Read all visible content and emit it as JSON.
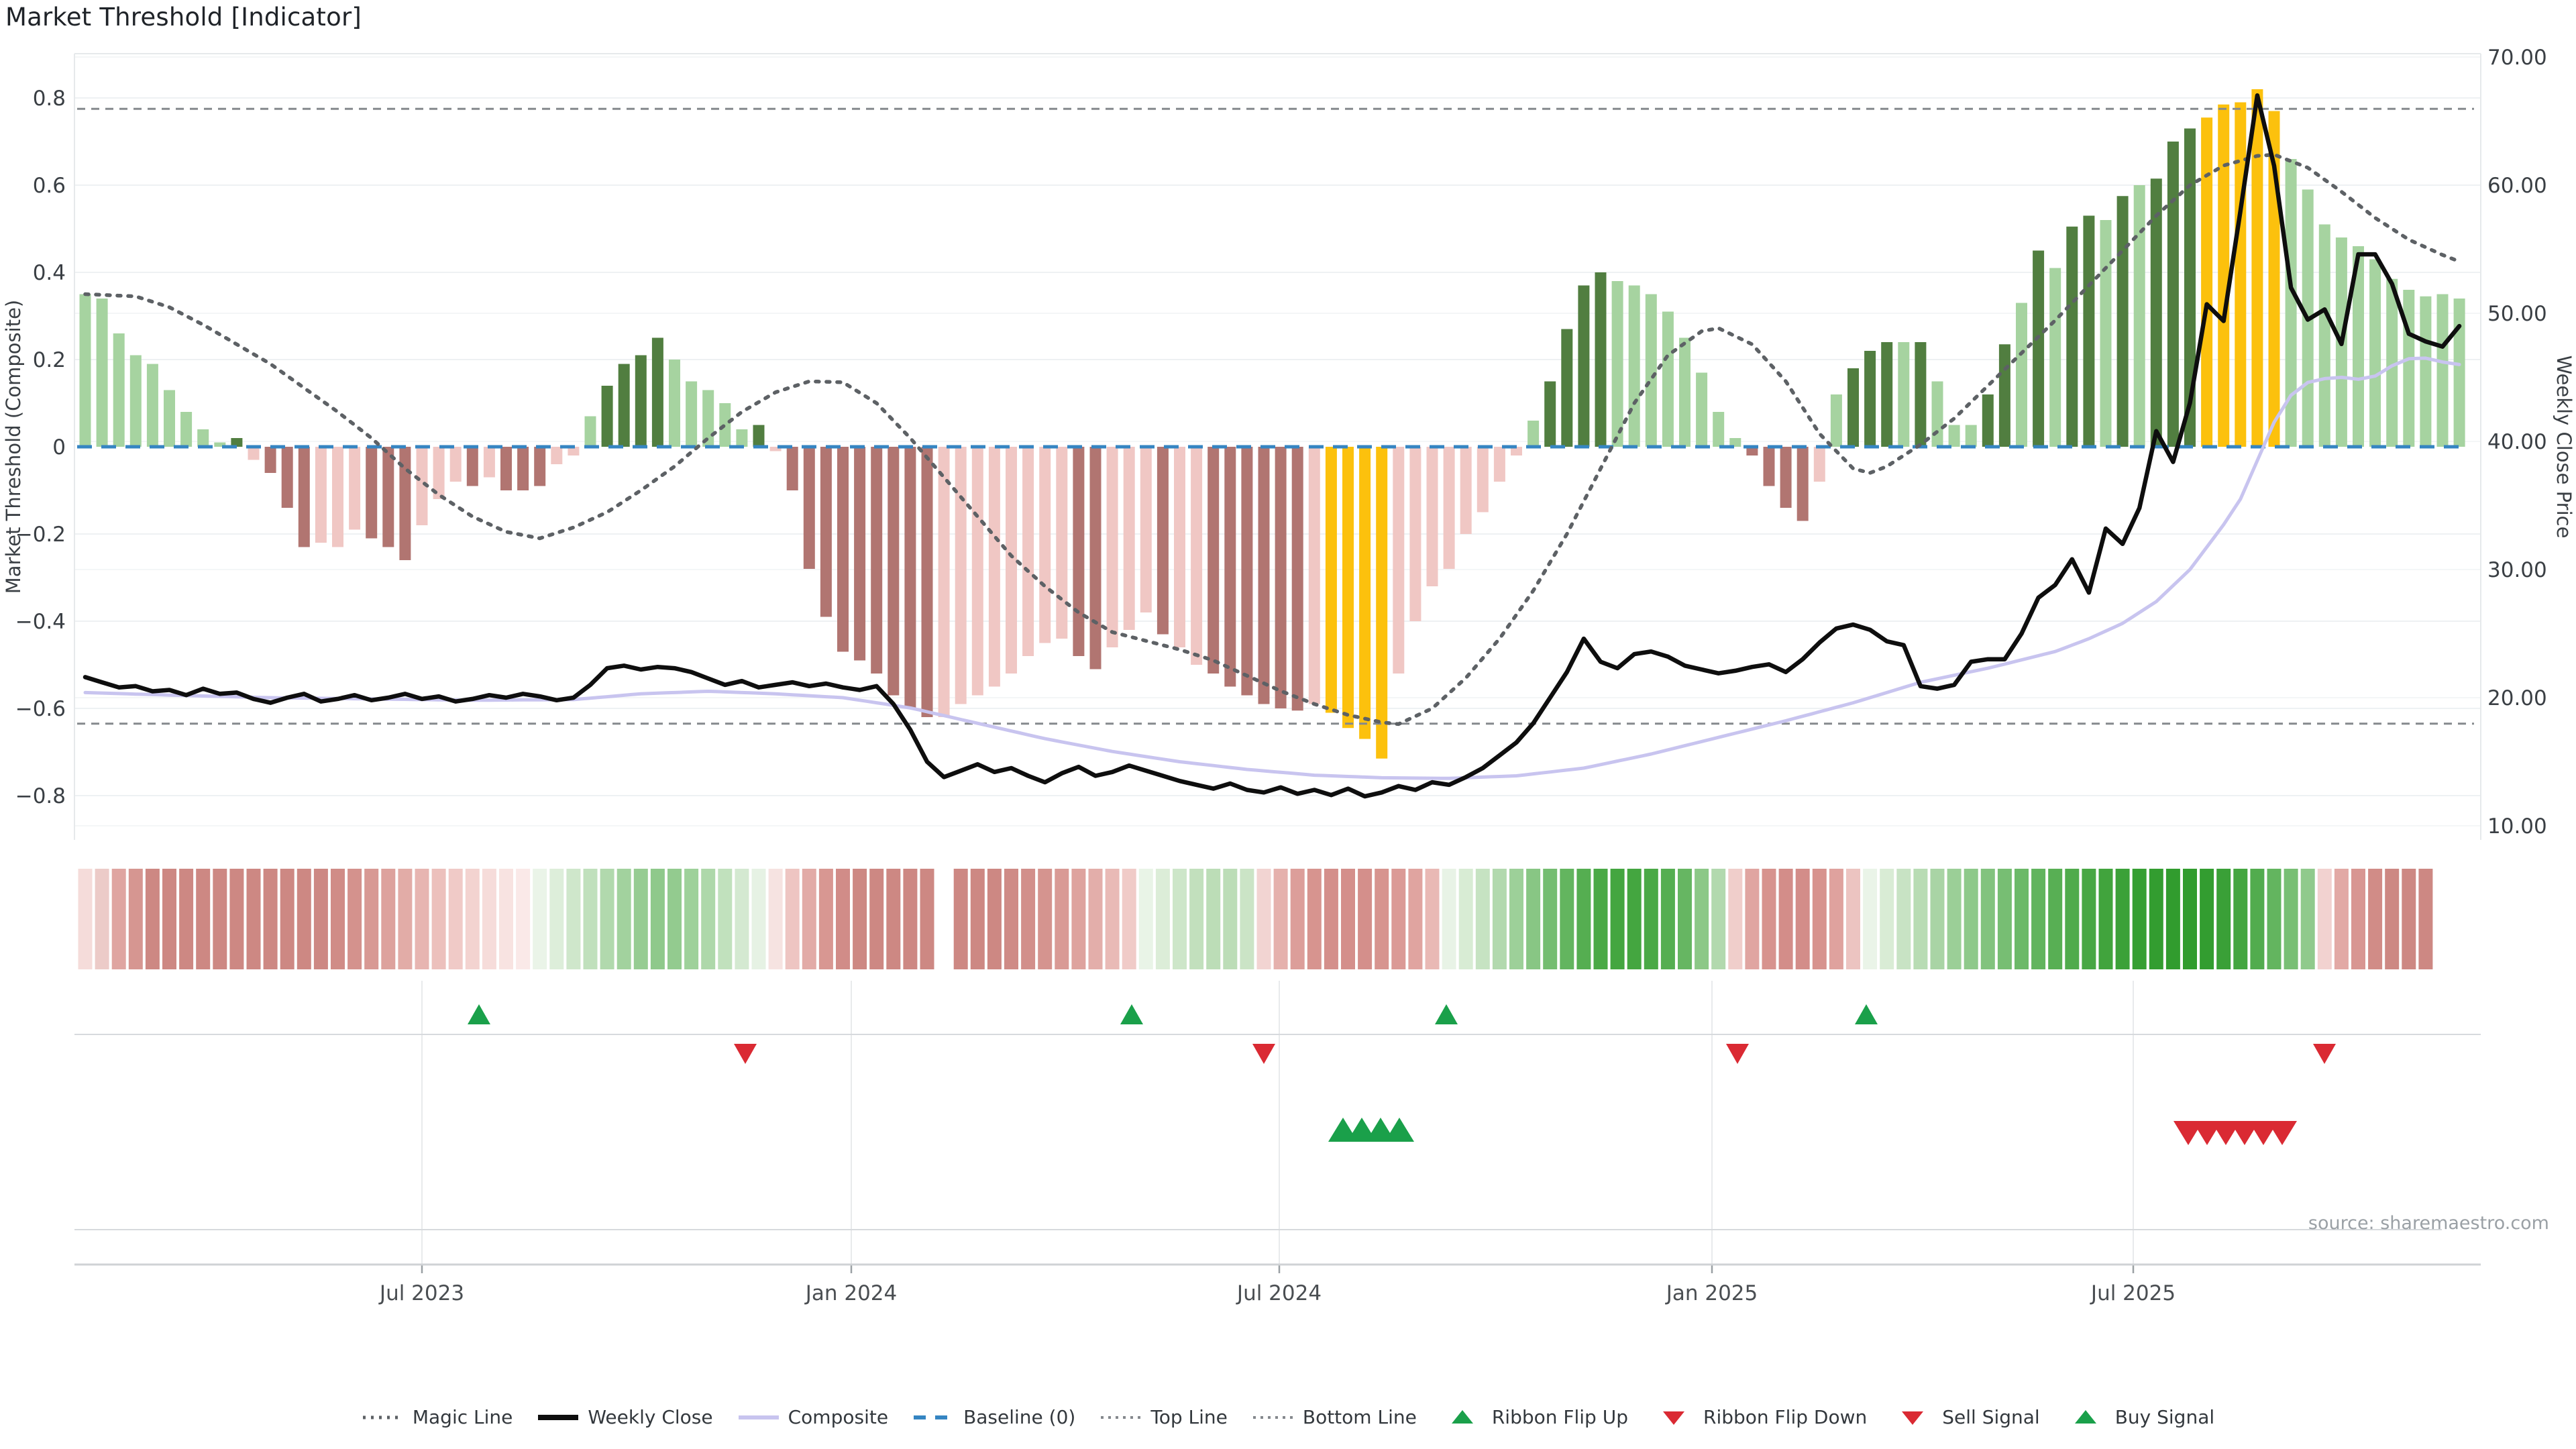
{
  "title": "Market Threshold [Indicator]",
  "source_note": "source: sharemaestro.com",
  "axes": {
    "left_label": "Market Threshold (Composite)",
    "right_label": "Weekly Close Price",
    "left_ticks": [
      {
        "v": 0.8,
        "label": "0.8"
      },
      {
        "v": 0.6,
        "label": "0.6"
      },
      {
        "v": 0.4,
        "label": "0.4"
      },
      {
        "v": 0.2,
        "label": "0.2"
      },
      {
        "v": 0.0,
        "label": "0"
      },
      {
        "v": -0.2,
        "label": "−0.2"
      },
      {
        "v": -0.4,
        "label": "−0.4"
      },
      {
        "v": -0.6,
        "label": "−0.6"
      },
      {
        "v": -0.8,
        "label": "−0.8"
      }
    ],
    "right_ticks": [
      {
        "p": 70,
        "label": "70.00"
      },
      {
        "p": 60,
        "label": "60.00"
      },
      {
        "p": 50,
        "label": "50.00"
      },
      {
        "p": 40,
        "label": "40.00"
      },
      {
        "p": 30,
        "label": "30.00"
      },
      {
        "p": 20,
        "label": "20.00"
      },
      {
        "p": 10,
        "label": "10.00"
      }
    ],
    "x_ticks": [
      {
        "label": "Jul 2023",
        "x": 629
      },
      {
        "label": "Jan 2024",
        "x": 1269
      },
      {
        "label": "Jul 2024",
        "x": 1907
      },
      {
        "label": "Jan 2025",
        "x": 2552
      },
      {
        "label": "Jul 2025",
        "x": 3180
      }
    ]
  },
  "legend": [
    {
      "label": "Magic Line",
      "marker": "dotted-gray"
    },
    {
      "label": "Weekly Close",
      "marker": "solid-black"
    },
    {
      "label": "Composite",
      "marker": "solid-purple"
    },
    {
      "label": "Baseline (0)",
      "marker": "dashed-blue"
    },
    {
      "label": "Top Line",
      "marker": "dotted-small"
    },
    {
      "label": "Bottom Line",
      "marker": "dotted-small"
    },
    {
      "label": "Ribbon Flip Up",
      "marker": "tri-up-green"
    },
    {
      "label": "Ribbon Flip Down",
      "marker": "tri-down-red"
    },
    {
      "label": "Sell Signal",
      "marker": "tri-down-red"
    },
    {
      "label": "Buy Signal",
      "marker": "tri-up-green"
    }
  ],
  "colors": {
    "bar_light_green": "#a6d3a0",
    "bar_dark_green": "#517e40",
    "bar_light_pink": "#f0c7c4",
    "bar_dark_pink": "#b17571",
    "bar_gold": "#fcc10d",
    "weekly_close": "#0e0e0e",
    "composite_line": "#c8c4ef",
    "magic_line": "#5d6165",
    "baseline": "#3585c2",
    "band_lines": "#85898d",
    "flip_up": "#1aa04a",
    "flip_down": "#da2a33",
    "grid": "#eef1f3",
    "grid2": "#f4f6f7",
    "spine": "#e6e9eb",
    "axis_text": "#3a3f44",
    "x_text": "#4a4e52",
    "muted_text": "#9aa0a5",
    "panel_line": "#d7dadd",
    "panel_grid": "#e8eaec"
  },
  "chart_data": {
    "type": "bar",
    "title": "Market Threshold [Indicator]",
    "xlabel": "",
    "ylabel_left": "Market Threshold (Composite)",
    "ylabel_right": "Weekly Close Price",
    "left_range": [
      -0.9,
      0.88
    ],
    "right_range": [
      8,
      70
    ],
    "grid": true,
    "legend_position": "bottom-center",
    "top_line": 0.775,
    "bottom_line": -0.635,
    "baseline": 0,
    "bar_classes_key": {
      "lg": "light green",
      "dg": "dark green",
      "lp": "light pink",
      "dp": "dark red",
      "au": "gold"
    },
    "bars": [
      [
        0.35,
        "lg"
      ],
      [
        0.34,
        "lg"
      ],
      [
        0.26,
        "lg"
      ],
      [
        0.21,
        "lg"
      ],
      [
        0.19,
        "lg"
      ],
      [
        0.13,
        "lg"
      ],
      [
        0.08,
        "lg"
      ],
      [
        0.04,
        "lg"
      ],
      [
        0.01,
        "lg"
      ],
      [
        0.02,
        "dg"
      ],
      [
        -0.03,
        "lp"
      ],
      [
        -0.06,
        "dp"
      ],
      [
        -0.14,
        "dp"
      ],
      [
        -0.23,
        "dp"
      ],
      [
        -0.22,
        "lp"
      ],
      [
        -0.23,
        "lp"
      ],
      [
        -0.19,
        "lp"
      ],
      [
        -0.21,
        "dp"
      ],
      [
        -0.23,
        "dp"
      ],
      [
        -0.26,
        "dp"
      ],
      [
        -0.18,
        "lp"
      ],
      [
        -0.12,
        "lp"
      ],
      [
        -0.08,
        "lp"
      ],
      [
        -0.09,
        "dp"
      ],
      [
        -0.07,
        "lp"
      ],
      [
        -0.1,
        "dp"
      ],
      [
        -0.1,
        "dp"
      ],
      [
        -0.09,
        "dp"
      ],
      [
        -0.04,
        "lp"
      ],
      [
        -0.02,
        "lp"
      ],
      [
        0.07,
        "lg"
      ],
      [
        0.14,
        "dg"
      ],
      [
        0.19,
        "dg"
      ],
      [
        0.21,
        "dg"
      ],
      [
        0.25,
        "dg"
      ],
      [
        0.2,
        "lg"
      ],
      [
        0.15,
        "lg"
      ],
      [
        0.13,
        "lg"
      ],
      [
        0.1,
        "lg"
      ],
      [
        0.04,
        "lg"
      ],
      [
        0.05,
        "dg"
      ],
      [
        -0.01,
        "lp"
      ],
      [
        -0.1,
        "dp"
      ],
      [
        -0.28,
        "dp"
      ],
      [
        -0.39,
        "dp"
      ],
      [
        -0.47,
        "dp"
      ],
      [
        -0.49,
        "dp"
      ],
      [
        -0.52,
        "dp"
      ],
      [
        -0.57,
        "dp"
      ],
      [
        -0.6,
        "dp"
      ],
      [
        -0.62,
        "dp"
      ],
      [
        -0.62,
        "lp"
      ],
      [
        -0.59,
        "lp"
      ],
      [
        -0.57,
        "lp"
      ],
      [
        -0.55,
        "lp"
      ],
      [
        -0.52,
        "lp"
      ],
      [
        -0.48,
        "lp"
      ],
      [
        -0.45,
        "lp"
      ],
      [
        -0.44,
        "lp"
      ],
      [
        -0.48,
        "dp"
      ],
      [
        -0.51,
        "dp"
      ],
      [
        -0.46,
        "lp"
      ],
      [
        -0.42,
        "lp"
      ],
      [
        -0.38,
        "lp"
      ],
      [
        -0.43,
        "dp"
      ],
      [
        -0.46,
        "lp"
      ],
      [
        -0.5,
        "lp"
      ],
      [
        -0.52,
        "dp"
      ],
      [
        -0.55,
        "dp"
      ],
      [
        -0.57,
        "dp"
      ],
      [
        -0.59,
        "dp"
      ],
      [
        -0.6,
        "dp"
      ],
      [
        -0.605,
        "dp"
      ],
      [
        -0.59,
        "lp"
      ],
      [
        -0.61,
        "au"
      ],
      [
        -0.645,
        "au"
      ],
      [
        -0.67,
        "au"
      ],
      [
        -0.715,
        "au"
      ],
      [
        -0.52,
        "lp"
      ],
      [
        -0.4,
        "lp"
      ],
      [
        -0.32,
        "lp"
      ],
      [
        -0.28,
        "lp"
      ],
      [
        -0.2,
        "lp"
      ],
      [
        -0.15,
        "lp"
      ],
      [
        -0.08,
        "lp"
      ],
      [
        -0.02,
        "lp"
      ],
      [
        0.06,
        "lg"
      ],
      [
        0.15,
        "dg"
      ],
      [
        0.27,
        "dg"
      ],
      [
        0.37,
        "dg"
      ],
      [
        0.4,
        "dg"
      ],
      [
        0.38,
        "lg"
      ],
      [
        0.37,
        "lg"
      ],
      [
        0.35,
        "lg"
      ],
      [
        0.31,
        "lg"
      ],
      [
        0.25,
        "lg"
      ],
      [
        0.17,
        "lg"
      ],
      [
        0.08,
        "lg"
      ],
      [
        0.02,
        "lg"
      ],
      [
        -0.02,
        "dp"
      ],
      [
        -0.09,
        "dp"
      ],
      [
        -0.14,
        "dp"
      ],
      [
        -0.17,
        "dp"
      ],
      [
        -0.08,
        "lp"
      ],
      [
        0.12,
        "lg"
      ],
      [
        0.18,
        "dg"
      ],
      [
        0.22,
        "dg"
      ],
      [
        0.24,
        "dg"
      ],
      [
        0.24,
        "lg"
      ],
      [
        0.24,
        "dg"
      ],
      [
        0.15,
        "lg"
      ],
      [
        0.05,
        "lg"
      ],
      [
        0.05,
        "lg"
      ],
      [
        0.12,
        "dg"
      ],
      [
        0.235,
        "dg"
      ],
      [
        0.33,
        "lg"
      ],
      [
        0.45,
        "dg"
      ],
      [
        0.41,
        "lg"
      ],
      [
        0.505,
        "dg"
      ],
      [
        0.53,
        "dg"
      ],
      [
        0.52,
        "lg"
      ],
      [
        0.575,
        "dg"
      ],
      [
        0.6,
        "lg"
      ],
      [
        0.615,
        "dg"
      ],
      [
        0.7,
        "dg"
      ],
      [
        0.73,
        "dg"
      ],
      [
        0.755,
        "au"
      ],
      [
        0.785,
        "au"
      ],
      [
        0.79,
        "au"
      ],
      [
        0.82,
        "au"
      ],
      [
        0.77,
        "au"
      ],
      [
        0.66,
        "lg"
      ],
      [
        0.59,
        "lg"
      ],
      [
        0.51,
        "lg"
      ],
      [
        0.48,
        "lg"
      ],
      [
        0.46,
        "lg"
      ],
      [
        0.43,
        "lg"
      ],
      [
        0.385,
        "lg"
      ],
      [
        0.36,
        "lg"
      ],
      [
        0.345,
        "lg"
      ],
      [
        0.35,
        "lg"
      ],
      [
        0.34,
        "lg"
      ]
    ],
    "weekly_close": [
      21.6,
      21.2,
      20.8,
      20.9,
      20.5,
      20.6,
      20.2,
      20.7,
      20.3,
      20.4,
      19.9,
      19.6,
      20.0,
      20.3,
      19.7,
      19.9,
      20.2,
      19.8,
      20.0,
      20.3,
      19.9,
      20.1,
      19.7,
      19.9,
      20.2,
      20.0,
      20.3,
      20.1,
      19.8,
      20.0,
      21.0,
      22.3,
      22.5,
      22.2,
      22.4,
      22.3,
      22.0,
      21.5,
      21.0,
      21.3,
      20.8,
      21.0,
      21.2,
      20.9,
      21.1,
      20.8,
      20.6,
      20.9,
      19.5,
      17.5,
      15.0,
      13.8,
      14.3,
      14.8,
      14.2,
      14.5,
      13.9,
      13.4,
      14.1,
      14.6,
      13.9,
      14.2,
      14.7,
      14.3,
      13.9,
      13.5,
      13.2,
      12.9,
      13.3,
      12.8,
      12.6,
      13.0,
      12.5,
      12.8,
      12.4,
      12.9,
      12.3,
      12.6,
      13.1,
      12.8,
      13.4,
      13.2,
      13.8,
      14.5,
      15.5,
      16.5,
      18.0,
      20.0,
      22.0,
      24.6,
      22.8,
      22.3,
      23.4,
      23.6,
      23.2,
      22.5,
      22.2,
      21.9,
      22.1,
      22.4,
      22.6,
      22.0,
      23.0,
      24.3,
      25.4,
      25.7,
      25.3,
      24.4,
      24.1,
      20.9,
      20.7,
      21.0,
      22.8,
      23.0,
      23.0,
      25.0,
      27.8,
      28.8,
      30.8,
      28.2,
      33.2,
      32.0,
      34.8,
      40.8,
      38.4,
      43.0,
      50.7,
      49.4,
      58.0,
      67.0,
      61.5,
      52.0,
      49.5,
      50.3,
      47.6,
      54.6,
      54.6,
      52.3,
      48.4,
      47.8,
      47.4,
      49.0
    ],
    "composite_anchors": [
      [
        1,
        20.4
      ],
      [
        6,
        20.2
      ],
      [
        12,
        20.0
      ],
      [
        18,
        19.9
      ],
      [
        24,
        19.8
      ],
      [
        30,
        19.85
      ],
      [
        34,
        20.3
      ],
      [
        38,
        20.5
      ],
      [
        42,
        20.3
      ],
      [
        46,
        20.0
      ],
      [
        50,
        19.2
      ],
      [
        54,
        18.0
      ],
      [
        58,
        16.8
      ],
      [
        62,
        15.8
      ],
      [
        66,
        15.0
      ],
      [
        70,
        14.4
      ],
      [
        74,
        13.95
      ],
      [
        78,
        13.75
      ],
      [
        82,
        13.7
      ],
      [
        86,
        13.9
      ],
      [
        90,
        14.5
      ],
      [
        94,
        15.6
      ],
      [
        98,
        16.9
      ],
      [
        102,
        18.2
      ],
      [
        106,
        19.6
      ],
      [
        110,
        21.2
      ],
      [
        114,
        22.3
      ],
      [
        118,
        23.6
      ],
      [
        120,
        24.6
      ],
      [
        122,
        25.8
      ],
      [
        124,
        27.5
      ],
      [
        126,
        30.0
      ],
      [
        128,
        33.5
      ],
      [
        129,
        35.5
      ],
      [
        130,
        38.5
      ],
      [
        131,
        41.5
      ],
      [
        132,
        43.6
      ],
      [
        133,
        44.6
      ],
      [
        134,
        44.9
      ],
      [
        135,
        45.0
      ],
      [
        136,
        44.85
      ],
      [
        137,
        45.1
      ],
      [
        138,
        45.9
      ],
      [
        139,
        46.45
      ],
      [
        140,
        46.5
      ],
      [
        141,
        46.2
      ],
      [
        142,
        46.0
      ]
    ],
    "magic_anchors": [
      [
        1,
        0.35
      ],
      [
        4,
        0.345
      ],
      [
        6,
        0.32
      ],
      [
        8,
        0.28
      ],
      [
        10,
        0.235
      ],
      [
        12,
        0.19
      ],
      [
        14,
        0.135
      ],
      [
        16,
        0.08
      ],
      [
        18,
        0.02
      ],
      [
        20,
        -0.05
      ],
      [
        22,
        -0.11
      ],
      [
        24,
        -0.16
      ],
      [
        26,
        -0.195
      ],
      [
        28,
        -0.21
      ],
      [
        30,
        -0.185
      ],
      [
        32,
        -0.15
      ],
      [
        34,
        -0.1
      ],
      [
        36,
        -0.045
      ],
      [
        38,
        0.02
      ],
      [
        40,
        0.08
      ],
      [
        42,
        0.125
      ],
      [
        44,
        0.15
      ],
      [
        46,
        0.148
      ],
      [
        48,
        0.1
      ],
      [
        50,
        0.02
      ],
      [
        52,
        -0.07
      ],
      [
        54,
        -0.16
      ],
      [
        56,
        -0.25
      ],
      [
        58,
        -0.32
      ],
      [
        60,
        -0.38
      ],
      [
        62,
        -0.425
      ],
      [
        64,
        -0.445
      ],
      [
        66,
        -0.465
      ],
      [
        68,
        -0.49
      ],
      [
        70,
        -0.525
      ],
      [
        72,
        -0.56
      ],
      [
        74,
        -0.59
      ],
      [
        76,
        -0.615
      ],
      [
        78,
        -0.632
      ],
      [
        79,
        -0.636
      ],
      [
        81,
        -0.6
      ],
      [
        83,
        -0.53
      ],
      [
        85,
        -0.44
      ],
      [
        87,
        -0.33
      ],
      [
        89,
        -0.2
      ],
      [
        91,
        -0.05
      ],
      [
        93,
        0.1
      ],
      [
        95,
        0.21
      ],
      [
        97,
        0.265
      ],
      [
        98,
        0.272
      ],
      [
        100,
        0.235
      ],
      [
        102,
        0.15
      ],
      [
        104,
        0.03
      ],
      [
        106,
        -0.05
      ],
      [
        107,
        -0.06
      ],
      [
        108,
        -0.045
      ],
      [
        110,
        0.005
      ],
      [
        112,
        0.065
      ],
      [
        114,
        0.14
      ],
      [
        116,
        0.215
      ],
      [
        118,
        0.29
      ],
      [
        120,
        0.37
      ],
      [
        122,
        0.45
      ],
      [
        124,
        0.53
      ],
      [
        126,
        0.6
      ],
      [
        128,
        0.645
      ],
      [
        130,
        0.667
      ],
      [
        131,
        0.67
      ],
      [
        133,
        0.64
      ],
      [
        135,
        0.585
      ],
      [
        137,
        0.525
      ],
      [
        139,
        0.475
      ],
      [
        141,
        0.44
      ],
      [
        142,
        0.425
      ]
    ],
    "ribbon": [
      "#f5dcda",
      "#eccbc8",
      "#dfa5a1",
      "#d69691",
      "#cd8883",
      "#cd8883",
      "#cd8883",
      "#cd8883",
      "#cd8883",
      "#cd8883",
      "#cd8883",
      "#cd8883",
      "#cd8883",
      "#cd8883",
      "#cd8883",
      "#d08c87",
      "#d4928d",
      "#d89994",
      "#dda29d",
      "#e2aca7",
      "#e7b5b1",
      "#ecc0bc",
      "#f0cac7",
      "#f3d3d0",
      "#f6dcda",
      "#f8e3e1",
      "#fae9e8",
      "#eaf4e8",
      "#ddeeda",
      "#cfe7cb",
      "#c0e0bc",
      "#b1d9ad",
      "#a2d29e",
      "#96cc92",
      "#8fc98b",
      "#93cb8f",
      "#9ed19a",
      "#aed8aa",
      "#c1e1bd",
      "#d4e9d1",
      "#e6f2e4",
      "#f6e3e1",
      "#eec5c2",
      "#e2aba7",
      "#d89792",
      "#d18c88",
      "#cd8883",
      "#cd8883",
      "#cd8883",
      "#cd8883",
      "#cd8883",
      null,
      "#cd8883",
      "#cd8883",
      "#cd8883",
      "#cf8b86",
      "#d28f8b",
      "#d5948f",
      "#d99a95",
      "#dea39e",
      "#e3aeaa",
      "#e9bab6",
      "#f0cbc8",
      "#e9f4e7",
      "#dcedd8",
      "#cde6c9",
      "#c2e0bd",
      "#bcddb7",
      "#bcddb7",
      "#cbe4c6",
      "#f2d4d2",
      "#e5b1ad",
      "#dc9e9a",
      "#d7948f",
      "#d48f8b",
      "#d48f8b",
      "#d48f8b",
      "#d7948f",
      "#db9a96",
      "#e0a4a0",
      "#e9b9b5",
      "#e8f3e6",
      "#d8ecd4",
      "#c6e3c2",
      "#b2d9ae",
      "#9dd099",
      "#88c684",
      "#74bd70",
      "#63b55f",
      "#55ae51",
      "#4aa946",
      "#44a640",
      "#44a640",
      "#4aa946",
      "#55ae51",
      "#66b662",
      "#8cc887",
      "#b2d9ae",
      "#f0cecb",
      "#e0a5a1",
      "#d7938e",
      "#d38d89",
      "#d38d89",
      "#d7938e",
      "#dfa29e",
      "#ecc4c1",
      "#eaf4e8",
      "#d9ecd5",
      "#c8e3c4",
      "#b8dcb4",
      "#a9d4a5",
      "#9bcf97",
      "#8ec98a",
      "#82c37e",
      "#77be73",
      "#6cb968",
      "#62b45e",
      "#58af54",
      "#50ab4c",
      "#48a744",
      "#41a43d",
      "#3ba138",
      "#369f33",
      "#339d30",
      "#319c2e",
      "#319c2e",
      "#339d30",
      "#3aa037",
      "#44a640",
      "#52ac4e",
      "#63b55f",
      "#78bf74",
      "#90ca8c",
      "#f2d2d0",
      "#e2a9a5",
      "#d89692",
      "#d18c87",
      "#cd8883",
      "#cd8883",
      "#cd8883"
    ],
    "signals": {
      "ribbon_flip_up_x": [
        714,
        1687,
        2156,
        2782
      ],
      "ribbon_flip_down_x": [
        1111,
        1884,
        2590,
        3465
      ],
      "buy_cluster_x": [
        2002,
        2030,
        2058,
        2086
      ],
      "sell_cluster_x": [
        3262,
        3290,
        3318,
        3346,
        3374,
        3402
      ]
    }
  }
}
